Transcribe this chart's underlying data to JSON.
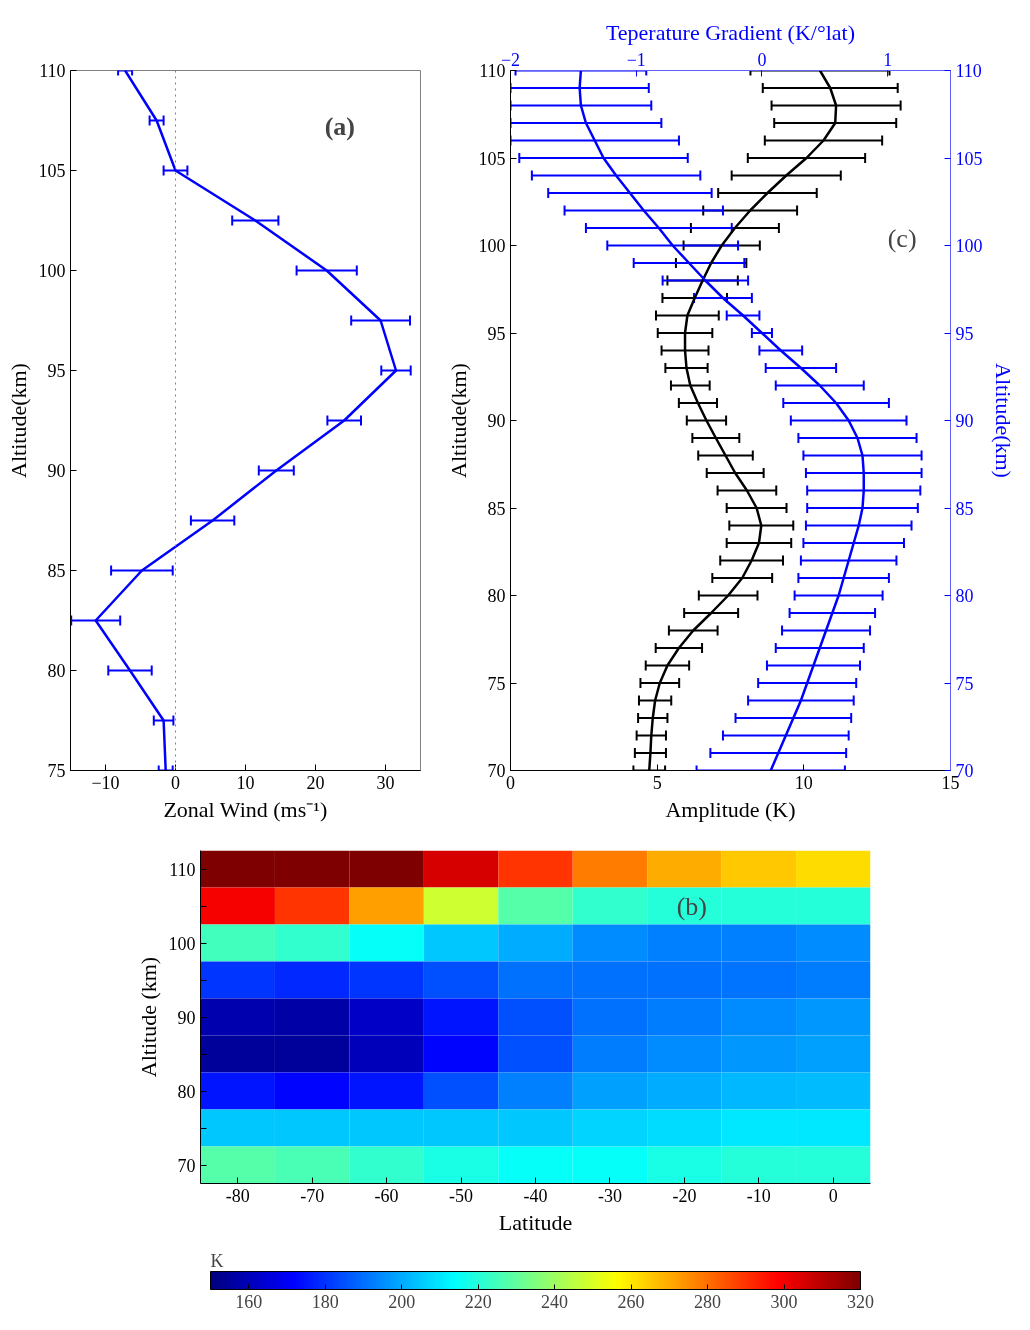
{
  "chart_data": [
    {
      "type": "line",
      "xlabel": "Zonal Wind (ms⁻¹)",
      "ylabel": "Altitude(km)",
      "color": "#0000ff",
      "x": [
        -7.2,
        -2.7,
        0,
        11.4,
        21.6,
        29.3,
        31.5,
        24.1,
        14.4,
        5.3,
        -4.8,
        -11.4,
        -6.5,
        -1.7,
        -1.4
      ],
      "values": [
        110,
        107.5,
        105,
        102.5,
        100,
        97.5,
        95,
        92.5,
        90,
        87.5,
        85,
        82.5,
        80,
        77.5,
        75
      ],
      "xerrors": [
        1,
        1,
        1.7,
        3.3,
        4.3,
        4.2,
        2.1,
        2.4,
        2.5,
        3.1,
        4.4,
        3.5,
        3.1,
        1.4,
        1.0
      ],
      "xlim": [
        -15,
        35
      ],
      "xticks": [
        -10,
        0,
        10,
        20,
        30
      ],
      "ylim": [
        75,
        110
      ],
      "yticks": [
        75,
        80,
        85,
        90,
        95,
        100,
        105,
        110
      ],
      "ref_lines": [
        {
          "axis": "x",
          "value": 0,
          "color": "#808080",
          "line_style": "dotted"
        }
      ],
      "annotations": [
        "(a)"
      ]
    },
    {
      "type": "line",
      "xlabel": "Amplitude (K)",
      "ylabel": "Altitude(km)",
      "x2label": "Teperature Gradient (K/°lat)",
      "y2label": "Altitude(km)",
      "series": [
        {
          "color": "#000000",
          "x": [
            10.55,
            10.9,
            11.1,
            11.07,
            10.67,
            10.09,
            9.4,
            8.76,
            8.17,
            7.65,
            7.2,
            6.84,
            6.55,
            6.28,
            6.03,
            5.95,
            5.95,
            6.0,
            6.13,
            6.39,
            6.68,
            7.0,
            7.33,
            7.66,
            8.06,
            8.39,
            8.55,
            8.47,
            8.22,
            7.9,
            7.42,
            6.84,
            6.23,
            5.74,
            5.35,
            5.09,
            4.93,
            4.85,
            4.8,
            4.77,
            4.73
          ],
          "values": [
            110,
            109,
            108,
            107,
            106,
            105,
            104,
            103,
            102,
            101,
            100,
            99,
            98,
            97,
            96,
            95,
            94,
            93,
            92,
            91,
            90,
            89,
            88,
            87,
            86,
            85,
            84,
            83,
            82,
            81,
            80,
            79,
            78,
            77,
            76,
            75,
            74,
            73,
            72,
            71,
            70
          ],
          "xerrors": [
            2.37,
            2.3,
            2.2,
            2.08,
            2.0,
            2.0,
            1.86,
            1.68,
            1.6,
            1.5,
            1.3,
            1.2,
            1.2,
            1.1,
            1.07,
            0.93,
            0.8,
            0.72,
            0.66,
            0.65,
            0.67,
            0.8,
            0.93,
            0.97,
            1.0,
            1.02,
            1.09,
            1.1,
            1.07,
            1.02,
            1.0,
            0.92,
            0.83,
            0.79,
            0.74,
            0.66,
            0.55,
            0.5,
            0.5,
            0.53,
            0.54
          ]
        },
        {
          "color": "#0000ff",
          "axis": "x2",
          "x": [
            -1.44,
            -1.45,
            -1.44,
            -1.4,
            -1.33,
            -1.26,
            -1.16,
            -1.05,
            -0.94,
            -0.82,
            -0.71,
            -0.58,
            -0.45,
            -0.31,
            -0.15,
            0,
            0.15,
            0.31,
            0.46,
            0.59,
            0.69,
            0.76,
            0.8,
            0.81,
            0.81,
            0.8,
            0.77,
            0.73,
            0.69,
            0.65,
            0.61,
            0.56,
            0.51,
            0.46,
            0.41,
            0.36,
            0.31,
            0.25,
            0.19,
            0.13,
            0.07
          ],
          "values": [
            110,
            109,
            108,
            107,
            106,
            105,
            104,
            103,
            102,
            101,
            100,
            99,
            98,
            97,
            96,
            95,
            94,
            93,
            92,
            91,
            90,
            89,
            88,
            87,
            86,
            85,
            84,
            83,
            82,
            81,
            80,
            79,
            78,
            77,
            76,
            75,
            74,
            73,
            72,
            71,
            70
          ],
          "xerrors": [
            0.52,
            0.55,
            0.56,
            0.6,
            0.67,
            0.67,
            0.67,
            0.65,
            0.63,
            0.58,
            0.52,
            0.44,
            0.34,
            0.23,
            0.13,
            0.08,
            0.17,
            0.28,
            0.35,
            0.42,
            0.46,
            0.47,
            0.47,
            0.46,
            0.45,
            0.44,
            0.42,
            0.4,
            0.38,
            0.36,
            0.35,
            0.34,
            0.35,
            0.35,
            0.37,
            0.39,
            0.42,
            0.46,
            0.5,
            0.54,
            0.59
          ]
        }
      ],
      "xlim": [
        0,
        15
      ],
      "xticks": [
        0,
        5,
        10,
        15
      ],
      "x2lim": [
        -2,
        1.5
      ],
      "x2ticks": [
        -2,
        -1,
        0,
        1
      ],
      "ylim": [
        70,
        110
      ],
      "yticks": [
        70,
        75,
        80,
        85,
        90,
        95,
        100,
        105,
        110
      ],
      "y2lim": [
        70,
        110
      ],
      "y2ticks": [
        70,
        75,
        80,
        85,
        90,
        95,
        100,
        105,
        110
      ],
      "annotations": [
        "(c)"
      ]
    },
    {
      "type": "heatmap",
      "xlabel": "Latitude",
      "ylabel": "Altitude (km)",
      "clabel": "K",
      "categories": [
        "-80",
        "-70",
        "-60",
        "-50",
        "-40",
        "-30",
        "-20",
        "-10",
        "0"
      ],
      "y_categories": [
        "110",
        null,
        "100",
        null,
        "90",
        null,
        "80",
        null,
        "70"
      ],
      "cells": [
        [
          320,
          320,
          320,
          305,
          290,
          278,
          270,
          265,
          262
        ],
        [
          300,
          290,
          272,
          248,
          228,
          222,
          220,
          220,
          220
        ],
        [
          225,
          222,
          215,
          205,
          200,
          195,
          193,
          193,
          195
        ],
        [
          180,
          178,
          180,
          185,
          190,
          190,
          190,
          191,
          192
        ],
        [
          158,
          157,
          162,
          175,
          185,
          190,
          192,
          195,
          197
        ],
        [
          155,
          155,
          160,
          172,
          185,
          192,
          195,
          197,
          198
        ],
        [
          175,
          172,
          175,
          185,
          193,
          198,
          200,
          202,
          203
        ],
        [
          205,
          205,
          205,
          205,
          205,
          207,
          208,
          210,
          210
        ],
        [
          228,
          226,
          222,
          218,
          215,
          215,
          218,
          220,
          220
        ]
      ],
      "clim": [
        150,
        320
      ],
      "cticks": [
        160,
        180,
        200,
        220,
        240,
        260,
        280,
        300,
        320
      ],
      "annotations": [
        "(b)"
      ]
    }
  ]
}
